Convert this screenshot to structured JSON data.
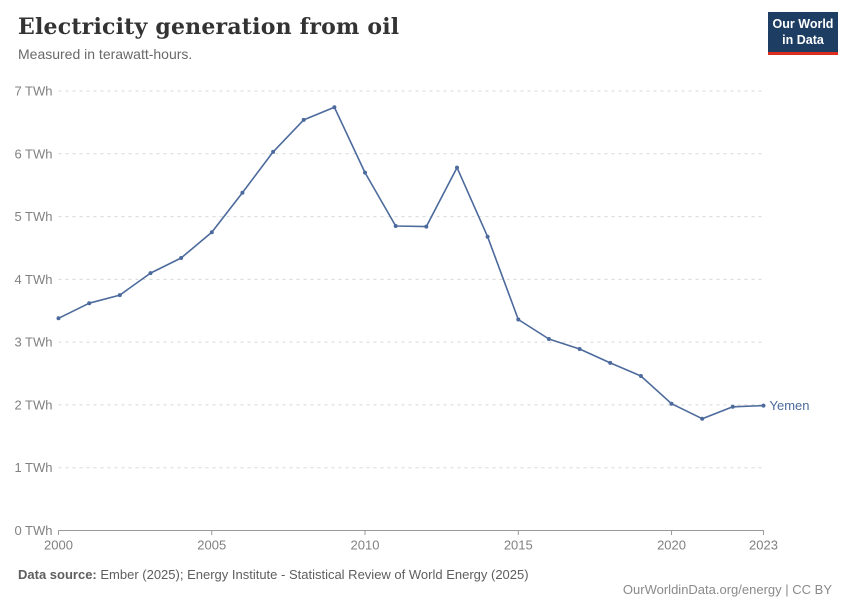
{
  "header": {
    "title": "Electricity generation from oil",
    "subtitle": "Measured in terawatt-hours."
  },
  "logo": {
    "line1": "Our World",
    "line2": "in Data"
  },
  "footer": {
    "source_label": "Data source:",
    "source_text": " Ember (2025); Energy Institute - Statistical Review of World Energy (2025)",
    "url": "OurWorldinData.org/energy",
    "separator": " | ",
    "license": "CC BY"
  },
  "colors": {
    "line": "#4C6A9C",
    "grid": "#d8d8d8",
    "axis": "#999999",
    "tick_text": "#818181",
    "logo_navy": "#1d3d63",
    "logo_red": "#dc2d1e",
    "title_text": "#333333",
    "subtitle_text": "#696969"
  },
  "chart_data": {
    "type": "line",
    "title": "Electricity generation from oil",
    "subtitle": "Measured in terawatt-hours.",
    "xlabel": "",
    "ylabel": "TWh",
    "x": [
      2000,
      2001,
      2002,
      2003,
      2004,
      2005,
      2006,
      2007,
      2008,
      2009,
      2010,
      2011,
      2012,
      2013,
      2014,
      2015,
      2016,
      2017,
      2018,
      2019,
      2020,
      2021,
      2022,
      2023
    ],
    "series": [
      {
        "name": "Yemen",
        "values": [
          3.38,
          3.62,
          3.75,
          4.1,
          4.34,
          4.75,
          5.38,
          6.03,
          6.54,
          6.74,
          5.7,
          4.85,
          4.84,
          5.78,
          4.68,
          3.36,
          3.05,
          2.89,
          2.67,
          2.46,
          2.02,
          1.78,
          1.97,
          1.99
        ]
      }
    ],
    "ylim": [
      0,
      7
    ],
    "xlim": [
      2000,
      2023
    ],
    "ytick_values": [
      0,
      1,
      2,
      3,
      4,
      5,
      6,
      7
    ],
    "ytick_labels": [
      "0 TWh",
      "1 TWh",
      "2 TWh",
      "3 TWh",
      "4 TWh",
      "5 TWh",
      "6 TWh",
      "7 TWh"
    ],
    "xtick_values": [
      2000,
      2005,
      2010,
      2015,
      2020,
      2023
    ],
    "xtick_labels": [
      "2000",
      "2005",
      "2010",
      "2015",
      "2020",
      "2023"
    ],
    "grid": "horizontal-dashed",
    "legend": "end-of-line entity label",
    "marker": "point"
  }
}
